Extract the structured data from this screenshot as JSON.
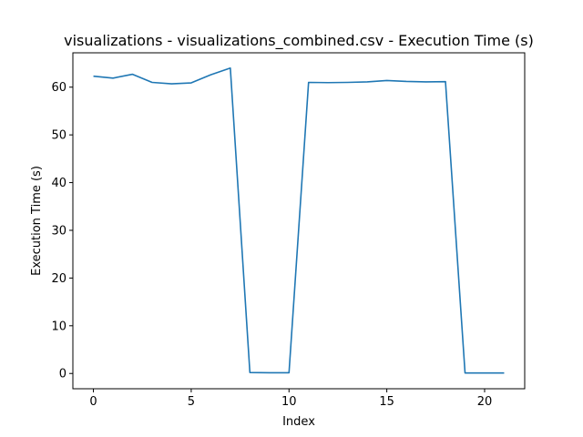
{
  "chart_data": {
    "type": "line",
    "title": "visualizations - visualizations_combined.csv - Execution Time (s)",
    "xlabel": "Index",
    "ylabel": "Execution Time (s)",
    "xlim": [
      -1.05,
      22.05
    ],
    "ylim": [
      -3.2,
      67.2
    ],
    "xticks": [
      0,
      5,
      10,
      15,
      20
    ],
    "yticks": [
      0,
      10,
      20,
      30,
      40,
      50,
      60
    ],
    "grid": false,
    "series": [
      {
        "color": "#1f77b4",
        "x": [
          0,
          1,
          2,
          3,
          4,
          5,
          6,
          7,
          8,
          9,
          10,
          11,
          12,
          13,
          14,
          15,
          16,
          17,
          18,
          19,
          20,
          21
        ],
        "y": [
          62.3,
          61.9,
          62.7,
          61.0,
          60.7,
          60.9,
          62.6,
          64.0,
          0.2,
          0.15,
          0.15,
          61.0,
          60.95,
          61.0,
          61.1,
          61.4,
          61.2,
          61.1,
          61.15,
          0.1,
          0.1,
          0.1
        ]
      }
    ]
  }
}
